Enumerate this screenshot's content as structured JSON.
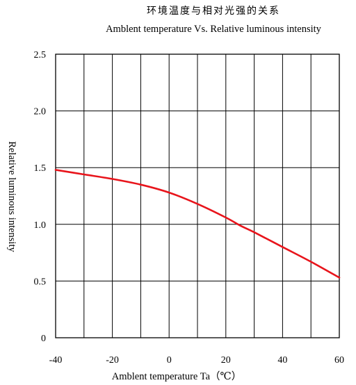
{
  "chart_data": {
    "type": "line",
    "title": "环境温度与相对光强的关系",
    "subtitle": "Amblent temperature  Vs.  Relative luminous intensity",
    "xlabel": "Amblent temperature Ta（℃）",
    "ylabel": "Relative luminous intensity",
    "xlim": [
      -40,
      60
    ],
    "ylim": [
      0,
      2.5
    ],
    "x_ticks": [
      -40,
      -30,
      -20,
      -10,
      0,
      10,
      20,
      30,
      40,
      50,
      60
    ],
    "x_tick_labels": [
      "-40",
      "",
      "-20",
      "",
      "0",
      "",
      "20",
      "",
      "40",
      "",
      "60"
    ],
    "y_ticks": [
      0,
      0.5,
      1.0,
      1.5,
      2.0,
      2.5
    ],
    "y_tick_labels": [
      "0",
      "0.5",
      "1.0",
      "1.5",
      "2.0",
      "2.5"
    ],
    "grid": true,
    "line_color": "#e8141b",
    "grid_color": "#000000",
    "series": [
      {
        "x": [
          -40,
          -30,
          -20,
          -10,
          0,
          10,
          20,
          25,
          30,
          40,
          50,
          60
        ],
        "values": [
          1.48,
          1.44,
          1.4,
          1.35,
          1.28,
          1.18,
          1.06,
          0.99,
          0.93,
          0.8,
          0.67,
          0.53
        ]
      }
    ]
  }
}
